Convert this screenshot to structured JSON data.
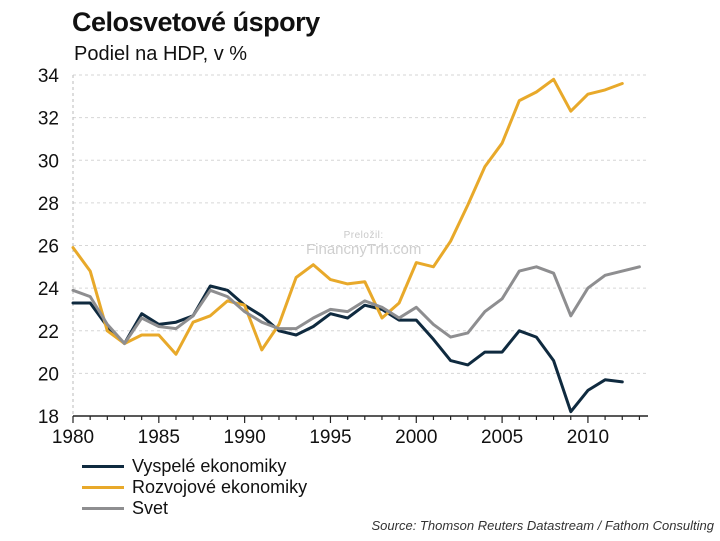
{
  "title": "Celosvetové úspory",
  "subtitle": "Podiel na HDP, v %",
  "source": "Source: Thomson Reuters Datastream / Fathom Consulting",
  "watermark": {
    "small": "Preložil:",
    "big": "FinancnyTrh.com"
  },
  "chart_data": {
    "type": "line",
    "title": "Celosvetové úspory",
    "subtitle": "Podiel na HDP, v %",
    "ylim": [
      18,
      34
    ],
    "yticks": [
      18,
      20,
      22,
      24,
      26,
      28,
      30,
      32,
      34
    ],
    "xlim": [
      1980,
      2013.5
    ],
    "xticks": [
      1980,
      1985,
      1990,
      1995,
      2000,
      2005,
      2010
    ],
    "grid": true,
    "legend_position": "bottom-left",
    "x": [
      1980,
      1981,
      1982,
      1983,
      1984,
      1985,
      1986,
      1987,
      1988,
      1989,
      1990,
      1991,
      1992,
      1993,
      1994,
      1995,
      1996,
      1997,
      1998,
      1999,
      2000,
      2001,
      2002,
      2003,
      2004,
      2005,
      2006,
      2007,
      2008,
      2009,
      2010,
      2011,
      2012,
      2013
    ],
    "series": [
      {
        "name": "Vyspelé ekonomiky",
        "color": "#0f2a3f",
        "values": [
          23.3,
          23.3,
          22.2,
          21.4,
          22.8,
          22.3,
          22.4,
          22.7,
          24.1,
          23.9,
          23.2,
          22.7,
          22.0,
          21.8,
          22.2,
          22.8,
          22.6,
          23.2,
          23.0,
          22.5,
          22.5,
          21.6,
          20.6,
          20.4,
          21.0,
          21.0,
          22.0,
          21.7,
          20.6,
          18.2,
          19.2,
          19.7,
          19.6,
          null
        ]
      },
      {
        "name": "Rozvojové ekonomiky",
        "color": "#e8a92a",
        "values": [
          25.9,
          24.8,
          22.0,
          21.4,
          21.8,
          21.8,
          20.9,
          22.4,
          22.7,
          23.4,
          23.2,
          21.1,
          22.3,
          24.5,
          25.1,
          24.4,
          24.2,
          24.3,
          22.6,
          23.3,
          25.2,
          25.0,
          26.2,
          27.9,
          29.7,
          30.8,
          32.8,
          33.2,
          33.8,
          32.3,
          33.1,
          33.3,
          33.6,
          null
        ]
      },
      {
        "name": "Svet",
        "color": "#8e8e90",
        "values": [
          23.9,
          23.6,
          22.3,
          21.4,
          22.6,
          22.2,
          22.1,
          22.7,
          23.9,
          23.6,
          22.9,
          22.4,
          22.1,
          22.1,
          22.6,
          23.0,
          22.9,
          23.4,
          23.1,
          22.6,
          23.1,
          22.3,
          21.7,
          21.9,
          22.9,
          23.5,
          24.8,
          25.0,
          24.7,
          22.7,
          24.0,
          24.6,
          24.8,
          25.0
        ]
      }
    ]
  }
}
